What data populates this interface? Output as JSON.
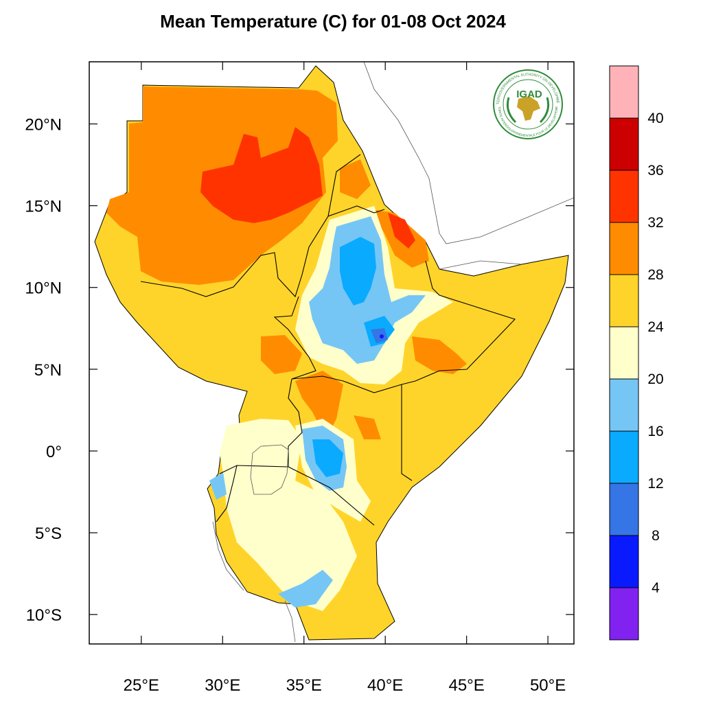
{
  "title": "Mean Temperature (C) for 01-08 Oct 2024",
  "logo": {
    "abbrev": "IGAD",
    "ring_top": "INTERGOVERNMENTAL AUTHORITY ON DEVELOPMENT",
    "ring_bottom": "AUTORITE INTERGOUVERNEMENTALE POUR LE DEVELOPPEMENT",
    "color": "#2e8b3a"
  },
  "axes": {
    "lon_ticks": [
      "25°E",
      "30°E",
      "35°E",
      "40°E",
      "45°E",
      "50°E"
    ],
    "lon_values": [
      25,
      30,
      35,
      40,
      45,
      50
    ],
    "lat_ticks": [
      "20°N",
      "15°N",
      "10°N",
      "5°N",
      "0°",
      "5°S",
      "10°S"
    ],
    "lat_values": [
      20,
      15,
      10,
      5,
      0,
      -5,
      -10
    ],
    "lon_range": [
      21.8,
      51.6
    ],
    "lat_range": [
      -11.8,
      23.8
    ]
  },
  "colorbar": {
    "labels": [
      "40",
      "36",
      "32",
      "28",
      "24",
      "20",
      "16",
      "12",
      "8",
      "4"
    ],
    "colors_top_to_bottom": [
      "#ffb3b8",
      "#cc0000",
      "#ff3300",
      "#ff8c00",
      "#ffd42a",
      "#ffffcc",
      "#75c6f5",
      "#0aaaff",
      "#3575e6",
      "#0a1aff",
      "#8122f0"
    ]
  }
}
